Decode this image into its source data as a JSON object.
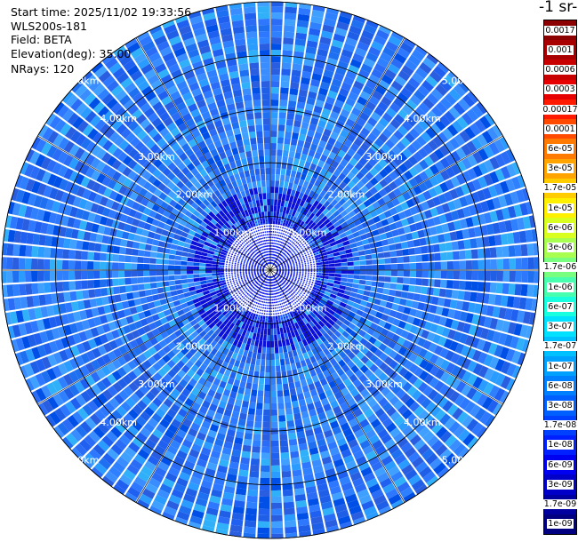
{
  "header": {
    "start_time": "Start time: 2025/11/02 19:33:56",
    "instrument": "WLS200s-181",
    "field": "Field: BETA",
    "elevation": "Elevation(deg): 35.00",
    "nrays": "NRays: 120"
  },
  "colorbar": {
    "title": "-1 sr-",
    "labels": [
      "0.0017",
      "0.001",
      "0.0006",
      "0.0003",
      "0.00017",
      "0.0001",
      "6e-05",
      "3e-05",
      "1.7e-05",
      "1e-05",
      "6e-06",
      "3e-06",
      "1.7e-06",
      "1e-06",
      "6e-07",
      "3e-07",
      "1.7e-07",
      "1e-07",
      "6e-08",
      "3e-08",
      "1.7e-08",
      "1e-08",
      "6e-09",
      "3e-09",
      "1.7e-09",
      "1e-09"
    ],
    "colors": [
      "#8b0000",
      "#a80000",
      "#c80000",
      "#e60000",
      "#ff1a00",
      "#ff4a00",
      "#ff7a00",
      "#ffa400",
      "#ffcc00",
      "#fff000",
      "#d8ff20",
      "#a8ff50",
      "#78ff80",
      "#48ffb0",
      "#18ffe0",
      "#00e0ff",
      "#00c0ff",
      "#00a0ff",
      "#0080ff",
      "#0060ff",
      "#0040ff",
      "#0020ff",
      "#0000f0",
      "#0000c8",
      "#0000a0",
      "#000080"
    ]
  },
  "chart_data": {
    "type": "polar_ppi",
    "nrays": 120,
    "range_rings_km": [
      1,
      2,
      3,
      4,
      5
    ],
    "range_labels": [
      "1.00km",
      "2.00km",
      "3.00km",
      "4.00km",
      "5.00km"
    ],
    "max_range_km": 5.0,
    "spokes_deg_step": 30,
    "dominant_value": "3e-08",
    "near_range_value": "1e-08"
  }
}
